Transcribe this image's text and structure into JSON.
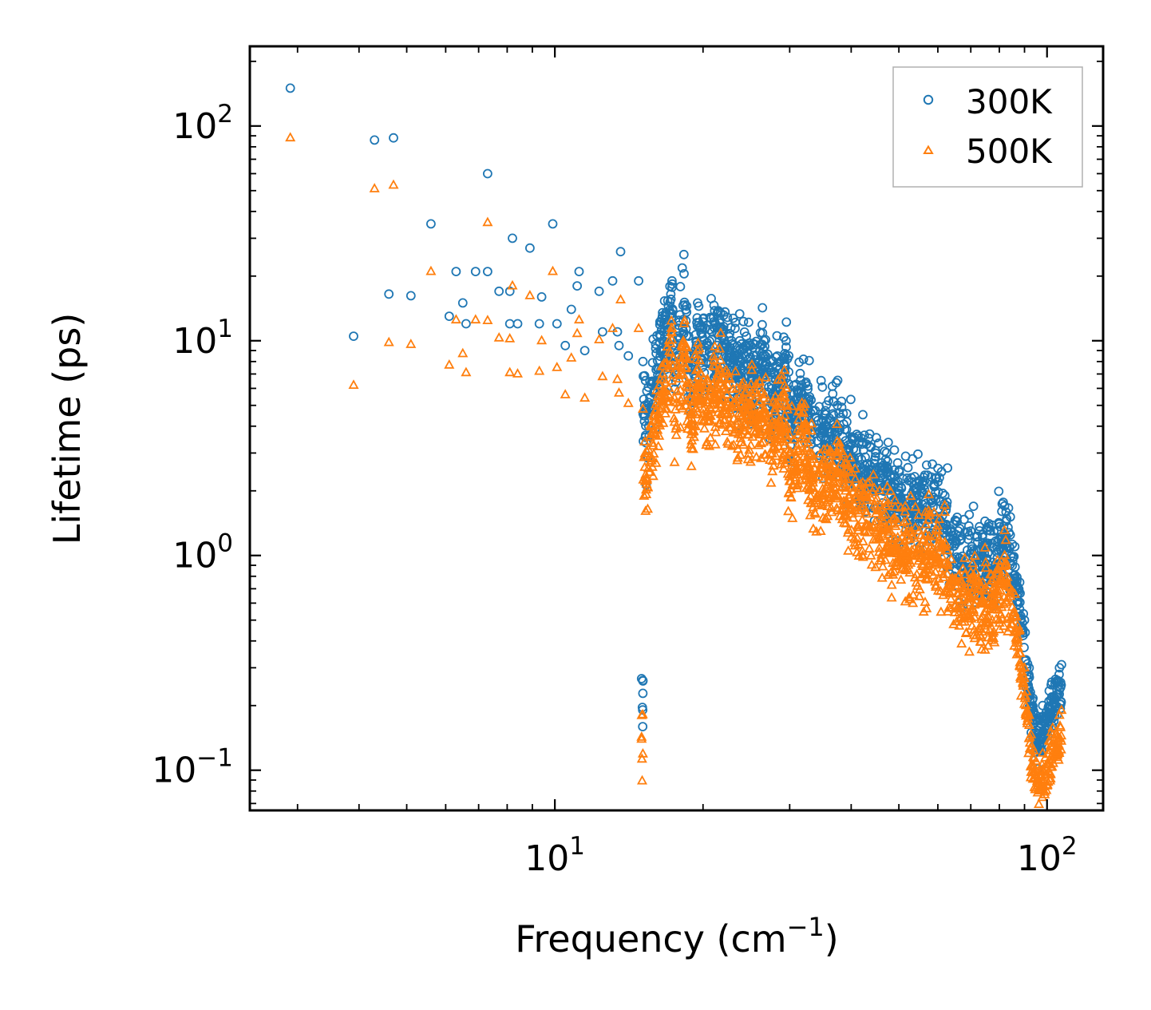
{
  "chart_data": {
    "type": "scatter",
    "title": "",
    "xlabel": "Frequency (cm",
    "xlabel_sup": "−1",
    "xlabel_close": ")",
    "ylabel": "Lifetime (ps)",
    "xscale": "log",
    "yscale": "log",
    "xlim": [
      2.4,
      130
    ],
    "ylim": [
      0.065,
      235
    ],
    "x_ticks": [
      {
        "value": 10,
        "base": "10",
        "exp": "1"
      },
      {
        "value": 100,
        "base": "10",
        "exp": "2"
      }
    ],
    "y_ticks": [
      {
        "value": 0.1,
        "base": "10",
        "exp": "−1"
      },
      {
        "value": 1,
        "base": "10",
        "exp": "0"
      },
      {
        "value": 10,
        "base": "10",
        "exp": "1"
      },
      {
        "value": 100,
        "base": "10",
        "exp": "2"
      }
    ],
    "legend_position": "top-right",
    "series": [
      {
        "name": "300K",
        "marker": "circle",
        "color": "#1f77b4",
        "points": [
          [
            2.9,
            150
          ],
          [
            3.9,
            10.5
          ],
          [
            4.3,
            86
          ],
          [
            4.6,
            16.5
          ],
          [
            4.7,
            88
          ],
          [
            5.1,
            16.2
          ],
          [
            5.6,
            35
          ],
          [
            6.1,
            13
          ],
          [
            6.3,
            21
          ],
          [
            6.5,
            15
          ],
          [
            6.6,
            12
          ],
          [
            6.9,
            21
          ],
          [
            7.3,
            21
          ],
          [
            7.3,
            60
          ],
          [
            7.7,
            17
          ],
          [
            8.1,
            17
          ],
          [
            8.1,
            12
          ],
          [
            8.2,
            30
          ],
          [
            8.4,
            12
          ],
          [
            8.9,
            27
          ],
          [
            9.3,
            12
          ],
          [
            9.4,
            16
          ],
          [
            9.9,
            35
          ],
          [
            10.1,
            12
          ],
          [
            10.5,
            9.5
          ],
          [
            10.8,
            14
          ],
          [
            11.1,
            18
          ],
          [
            11.2,
            21
          ],
          [
            11.5,
            9
          ],
          [
            12.3,
            17
          ],
          [
            12.5,
            11
          ],
          [
            13.1,
            19
          ],
          [
            13.4,
            11
          ],
          [
            13.5,
            9.5
          ],
          [
            13.6,
            26
          ],
          [
            14.1,
            8.5
          ],
          [
            14.8,
            19
          ],
          [
            15.1,
            8
          ],
          [
            15.3,
            4.8
          ],
          [
            16.5,
            12.7
          ],
          [
            16.8,
            13
          ],
          [
            17.3,
            19
          ],
          [
            17.5,
            9
          ],
          [
            18.3,
            20.5
          ],
          [
            18.7,
            10.5
          ],
          [
            19,
            7.6
          ],
          [
            19.5,
            15
          ],
          [
            20.1,
            10
          ],
          [
            21.7,
            13.5
          ],
          [
            22,
            11
          ],
          [
            24.4,
            9.5
          ],
          [
            25.5,
            9.6
          ],
          [
            26.7,
            9.4
          ],
          [
            27.5,
            7.1
          ],
          [
            29.5,
            10
          ],
          [
            30,
            5.1
          ],
          [
            32,
            8.2
          ],
          [
            33.5,
            4.7
          ],
          [
            37.5,
            5
          ],
          [
            40.2,
            3.5
          ],
          [
            43,
            3.3
          ],
          [
            47,
            2.8
          ],
          [
            49,
            2.5
          ],
          [
            53,
            2.3
          ],
          [
            55,
            2.2
          ],
          [
            60,
            2.2
          ],
          [
            62,
            1.9
          ],
          [
            66,
            1.3
          ],
          [
            70,
            1.3
          ],
          [
            74,
            1.25
          ],
          [
            78,
            1.3
          ],
          [
            82,
            1.7
          ],
          [
            86,
            1.1
          ],
          [
            88,
            0.75
          ],
          [
            90,
            0.5
          ],
          [
            92,
            0.3
          ],
          [
            95,
            0.18
          ],
          [
            98,
            0.2
          ],
          [
            102,
            0.25
          ],
          [
            106,
            0.3
          ],
          [
            107,
            0.31
          ]
        ]
      },
      {
        "name": "500K",
        "marker": "triangle",
        "color": "#ff7f0e",
        "points": [
          [
            2.9,
            88
          ],
          [
            3.9,
            6.2
          ],
          [
            4.3,
            51
          ],
          [
            4.6,
            9.8
          ],
          [
            4.7,
            53
          ],
          [
            5.1,
            9.6
          ],
          [
            5.6,
            21
          ],
          [
            6.1,
            7.7
          ],
          [
            6.3,
            12.5
          ],
          [
            6.5,
            8.7
          ],
          [
            6.6,
            7.1
          ],
          [
            6.9,
            12.5
          ],
          [
            7.3,
            12.4
          ],
          [
            7.3,
            35.5
          ],
          [
            7.7,
            10.3
          ],
          [
            8.1,
            10.2
          ],
          [
            8.1,
            7.1
          ],
          [
            8.2,
            18
          ],
          [
            8.4,
            7
          ],
          [
            8.9,
            16.2
          ],
          [
            9.3,
            7.2
          ],
          [
            9.4,
            10
          ],
          [
            9.9,
            21
          ],
          [
            10.1,
            7.5
          ],
          [
            10.5,
            5.6
          ],
          [
            10.8,
            8.3
          ],
          [
            11.1,
            10.8
          ],
          [
            11.2,
            12.5
          ],
          [
            11.5,
            5.4
          ],
          [
            12.3,
            10.1
          ],
          [
            12.5,
            6.8
          ],
          [
            13.1,
            11.4
          ],
          [
            13.4,
            6.6
          ],
          [
            13.5,
            5.7
          ],
          [
            13.6,
            15.5
          ],
          [
            14.1,
            5.1
          ],
          [
            14.8,
            11.4
          ],
          [
            15.1,
            4.8
          ],
          [
            15.3,
            2.9
          ],
          [
            16.5,
            7.6
          ],
          [
            16.8,
            7.8
          ],
          [
            17.3,
            11.4
          ],
          [
            17.5,
            5.4
          ],
          [
            18.3,
            12
          ],
          [
            18.7,
            6.3
          ],
          [
            19,
            4.6
          ],
          [
            19.5,
            9
          ],
          [
            20.1,
            6
          ],
          [
            21.7,
            8.1
          ],
          [
            22,
            6.6
          ],
          [
            24.4,
            5.7
          ],
          [
            25.5,
            5.7
          ],
          [
            26.7,
            5.6
          ],
          [
            27.5,
            4.3
          ],
          [
            29.5,
            6
          ],
          [
            30,
            3
          ],
          [
            32,
            4.9
          ],
          [
            33.5,
            2.8
          ],
          [
            37.5,
            3
          ],
          [
            40.2,
            2.1
          ],
          [
            43,
            2
          ],
          [
            47,
            1.7
          ],
          [
            49,
            1.5
          ],
          [
            53,
            1.3
          ],
          [
            55,
            1.3
          ],
          [
            60,
            1.3
          ],
          [
            62,
            1.15
          ],
          [
            66,
            0.8
          ],
          [
            70,
            0.78
          ],
          [
            74,
            0.75
          ],
          [
            78,
            0.78
          ],
          [
            82,
            1.0
          ],
          [
            86,
            0.66
          ],
          [
            88,
            0.45
          ],
          [
            90,
            0.3
          ],
          [
            92,
            0.18
          ],
          [
            95,
            0.11
          ],
          [
            98,
            0.12
          ],
          [
            102,
            0.15
          ],
          [
            106,
            0.18
          ],
          [
            107,
            0.19
          ]
        ]
      }
    ]
  }
}
